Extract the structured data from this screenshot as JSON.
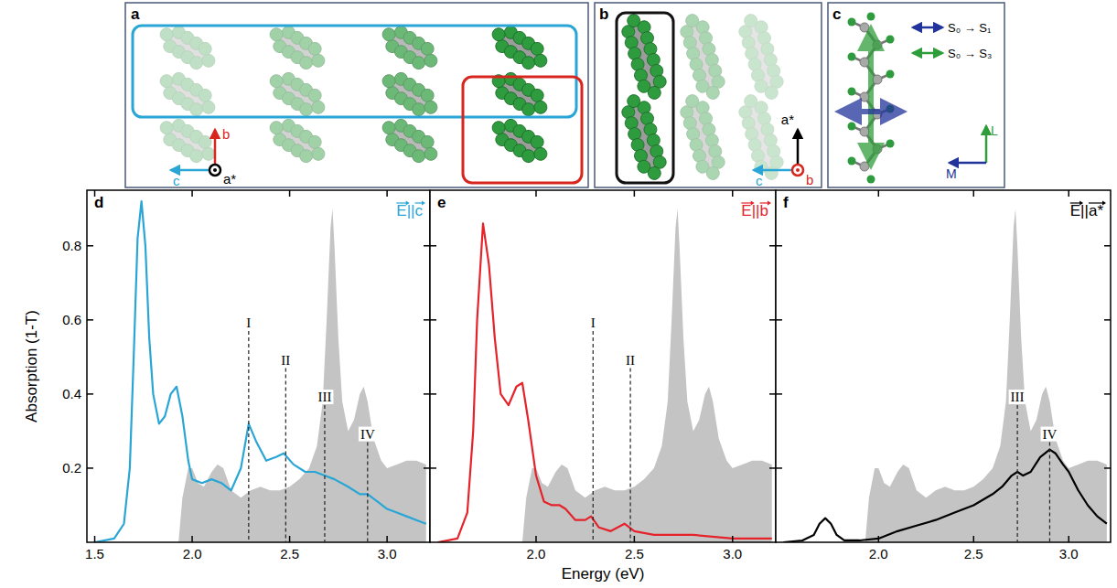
{
  "structures": {
    "panels": [
      {
        "title": "a",
        "axis_labels": [
          "b",
          "c",
          "a*"
        ]
      },
      {
        "title": "b",
        "axis_labels": [
          "a*",
          "c",
          "b"
        ]
      },
      {
        "title": "c",
        "axis_labels": [
          "L",
          "M"
        ],
        "transitions": [
          "S₀ → S₁",
          "S₀ → S₃"
        ]
      }
    ]
  },
  "chart_data": [
    {
      "type": "line",
      "title": "d",
      "y_label": "Absorption (1-T)",
      "xlim": [
        1.46,
        3.22
      ],
      "ylim": [
        0,
        0.95
      ],
      "xticks": [
        1.5,
        {
          "value": 2,
          "label": "2.0"
        },
        2.5,
        {
          "value": 3,
          "label": "3.0"
        }
      ],
      "yticks": [
        0.2,
        0.4,
        0.6,
        0.8
      ],
      "series": [
        {
          "type": "area",
          "color": "#c4c4c4",
          "x": [
            1.93,
            1.95,
            1.98,
            2.0,
            2.03,
            2.06,
            2.1,
            2.13,
            2.16,
            2.2,
            2.25,
            2.3,
            2.35,
            2.4,
            2.45,
            2.5,
            2.55,
            2.6,
            2.64,
            2.67,
            2.69,
            2.71,
            2.72,
            2.73,
            2.75,
            2.77,
            2.8,
            2.83,
            2.86,
            2.88,
            2.9,
            2.93,
            2.97,
            3.0,
            3.05,
            3.1,
            3.15,
            3.2
          ],
          "values": [
            0,
            0.12,
            0.2,
            0.2,
            0.16,
            0.15,
            0.19,
            0.21,
            0.2,
            0.14,
            0.12,
            0.14,
            0.15,
            0.14,
            0.14,
            0.15,
            0.17,
            0.2,
            0.26,
            0.38,
            0.6,
            0.85,
            0.9,
            0.8,
            0.55,
            0.38,
            0.3,
            0.33,
            0.4,
            0.42,
            0.38,
            0.28,
            0.22,
            0.2,
            0.21,
            0.22,
            0.22,
            0.21
          ]
        },
        {
          "name": "E||c",
          "color": "#29a6d6",
          "x": [
            1.5,
            1.6,
            1.65,
            1.68,
            1.7,
            1.72,
            1.74,
            1.76,
            1.78,
            1.8,
            1.83,
            1.86,
            1.89,
            1.92,
            1.95,
            1.98,
            2.0,
            2.05,
            2.1,
            2.15,
            2.2,
            2.25,
            2.29,
            2.33,
            2.38,
            2.43,
            2.47,
            2.52,
            2.58,
            2.63,
            2.68,
            2.73,
            2.8,
            2.86,
            2.9,
            2.95,
            3.0,
            3.05,
            3.1,
            3.15,
            3.2
          ],
          "values": [
            0,
            0.01,
            0.05,
            0.2,
            0.5,
            0.82,
            0.92,
            0.8,
            0.55,
            0.4,
            0.32,
            0.34,
            0.4,
            0.42,
            0.34,
            0.22,
            0.17,
            0.16,
            0.17,
            0.16,
            0.14,
            0.2,
            0.32,
            0.27,
            0.22,
            0.23,
            0.24,
            0.21,
            0.19,
            0.19,
            0.18,
            0.17,
            0.15,
            0.13,
            0.13,
            0.11,
            0.09,
            0.08,
            0.07,
            0.06,
            0.05
          ]
        }
      ],
      "annotations": [
        {
          "text": "I",
          "x": 2.29,
          "y": 0.57
        },
        {
          "text": "II",
          "x": 2.48,
          "y": 0.47
        },
        {
          "text": "III",
          "x": 2.68,
          "y": 0.37
        },
        {
          "text": "IV",
          "x": 2.9,
          "y": 0.27
        }
      ]
    },
    {
      "type": "line",
      "title": "e",
      "x_label": "Energy (eV)",
      "xlim": [
        1.46,
        3.22
      ],
      "ylim": [
        0,
        0.95
      ],
      "xticks": [
        {
          "value": 2,
          "label": "2.0"
        },
        2.5,
        {
          "value": 3,
          "label": "3.0"
        }
      ],
      "yticks": [
        0.2,
        0.4,
        0.6,
        0.8
      ],
      "tick_labels": "x",
      "series": [
        {
          "type": "area",
          "color": "#c4c4c4",
          "x": [
            1.93,
            1.95,
            1.98,
            2.0,
            2.03,
            2.06,
            2.1,
            2.13,
            2.16,
            2.2,
            2.25,
            2.3,
            2.35,
            2.4,
            2.45,
            2.5,
            2.55,
            2.6,
            2.64,
            2.67,
            2.69,
            2.71,
            2.72,
            2.73,
            2.75,
            2.77,
            2.8,
            2.83,
            2.86,
            2.88,
            2.9,
            2.93,
            2.97,
            3.0,
            3.05,
            3.1,
            3.15,
            3.2
          ],
          "values": [
            0,
            0.12,
            0.2,
            0.2,
            0.16,
            0.15,
            0.19,
            0.21,
            0.2,
            0.14,
            0.12,
            0.14,
            0.15,
            0.14,
            0.14,
            0.15,
            0.17,
            0.2,
            0.26,
            0.38,
            0.6,
            0.85,
            0.9,
            0.8,
            0.55,
            0.38,
            0.3,
            0.33,
            0.4,
            0.42,
            0.38,
            0.28,
            0.22,
            0.2,
            0.21,
            0.22,
            0.22,
            0.21
          ]
        },
        {
          "name": "E||b",
          "color": "#e4232b",
          "x": [
            1.5,
            1.6,
            1.65,
            1.68,
            1.7,
            1.73,
            1.76,
            1.79,
            1.82,
            1.86,
            1.9,
            1.93,
            1.96,
            2.0,
            2.04,
            2.08,
            2.12,
            2.15,
            2.2,
            2.25,
            2.28,
            2.32,
            2.38,
            2.45,
            2.5,
            2.6,
            2.8,
            3.0,
            3.2
          ],
          "values": [
            0,
            0.01,
            0.08,
            0.3,
            0.6,
            0.86,
            0.75,
            0.55,
            0.4,
            0.37,
            0.42,
            0.43,
            0.33,
            0.18,
            0.11,
            0.1,
            0.1,
            0.09,
            0.06,
            0.06,
            0.07,
            0.04,
            0.03,
            0.05,
            0.03,
            0.02,
            0.02,
            0.01,
            0.01
          ]
        }
      ],
      "annotations": [
        {
          "text": "I",
          "x": 2.29,
          "y": 0.57
        },
        {
          "text": "II",
          "x": 2.48,
          "y": 0.47
        }
      ]
    },
    {
      "type": "line",
      "title": "f",
      "xlim": [
        1.46,
        3.22
      ],
      "ylim": [
        0,
        0.95
      ],
      "xticks": [
        {
          "value": 2,
          "label": "2.0"
        },
        2.5,
        {
          "value": 3,
          "label": "3.0"
        }
      ],
      "yticks": [
        0.2,
        0.4,
        0.6,
        0.8
      ],
      "tick_labels": "x",
      "series": [
        {
          "type": "area",
          "color": "#c4c4c4",
          "x": [
            1.93,
            1.95,
            1.98,
            2.0,
            2.03,
            2.06,
            2.1,
            2.13,
            2.16,
            2.2,
            2.25,
            2.3,
            2.35,
            2.4,
            2.45,
            2.5,
            2.55,
            2.6,
            2.64,
            2.67,
            2.69,
            2.71,
            2.72,
            2.73,
            2.75,
            2.77,
            2.8,
            2.83,
            2.86,
            2.88,
            2.9,
            2.93,
            2.97,
            3.0,
            3.05,
            3.1,
            3.15,
            3.2
          ],
          "values": [
            0,
            0.12,
            0.2,
            0.2,
            0.16,
            0.15,
            0.19,
            0.21,
            0.2,
            0.14,
            0.12,
            0.14,
            0.15,
            0.14,
            0.14,
            0.15,
            0.17,
            0.2,
            0.26,
            0.38,
            0.6,
            0.85,
            0.9,
            0.8,
            0.55,
            0.38,
            0.3,
            0.33,
            0.4,
            0.42,
            0.38,
            0.28,
            0.22,
            0.2,
            0.21,
            0.22,
            0.22,
            0.21
          ]
        },
        {
          "name": "E||a*",
          "color": "#000000",
          "x": [
            1.5,
            1.6,
            1.66,
            1.69,
            1.72,
            1.75,
            1.78,
            1.82,
            1.9,
            2.0,
            2.1,
            2.2,
            2.3,
            2.4,
            2.5,
            2.6,
            2.65,
            2.7,
            2.73,
            2.76,
            2.8,
            2.85,
            2.9,
            2.93,
            2.97,
            3.0,
            3.05,
            3.1,
            3.15,
            3.2
          ],
          "values": [
            0,
            0.005,
            0.02,
            0.05,
            0.065,
            0.05,
            0.02,
            0.005,
            0.005,
            0.01,
            0.03,
            0.045,
            0.06,
            0.08,
            0.1,
            0.13,
            0.15,
            0.18,
            0.19,
            0.18,
            0.19,
            0.23,
            0.25,
            0.24,
            0.21,
            0.19,
            0.14,
            0.1,
            0.07,
            0.05
          ]
        }
      ],
      "annotations": [
        {
          "text": "III",
          "x": 2.73,
          "y": 0.37
        },
        {
          "text": "IV",
          "x": 2.9,
          "y": 0.27
        }
      ]
    }
  ]
}
